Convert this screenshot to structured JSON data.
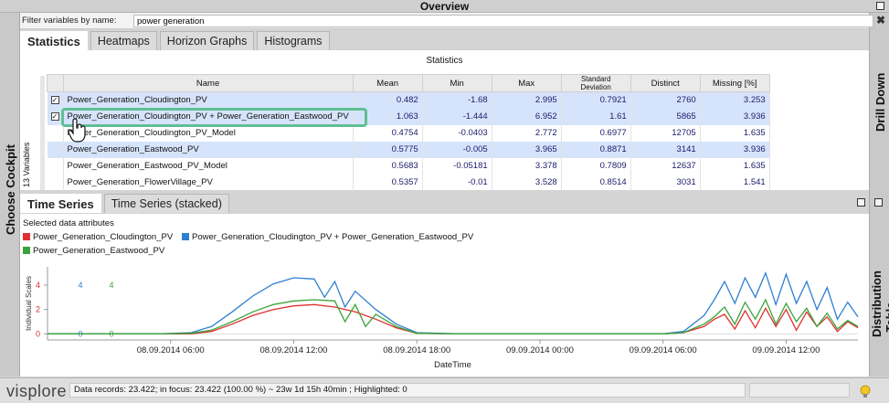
{
  "window": {
    "title": "Overview"
  },
  "side_panels": {
    "left": "Choose Cockpit",
    "right_top": "Drill Down",
    "right_bottom": "Distribution Table"
  },
  "filter": {
    "label": "Filter variables by name:",
    "value": "power generation",
    "clear_icon": "close-icon"
  },
  "top_tabs": [
    {
      "label": "Statistics",
      "active": true
    },
    {
      "label": "Heatmaps",
      "active": false
    },
    {
      "label": "Horizon Graphs",
      "active": false
    },
    {
      "label": "Histograms",
      "active": false
    }
  ],
  "statistics": {
    "heading": "Statistics",
    "variable_count": "13 Variables",
    "columns": [
      "Name",
      "Mean",
      "Min",
      "Max",
      "Standard Deviation",
      "Distinct",
      "Missing [%]"
    ],
    "rows": [
      {
        "checked": true,
        "selected": true,
        "name": "Power_Generation_Cloudington_PV",
        "mean": "0.482",
        "min": "-1.68",
        "max": "2.995",
        "std": "0.7921",
        "distinct": "2760",
        "missing": "3.253"
      },
      {
        "checked": true,
        "selected": true,
        "name": "Power_Generation_Cloudington_PV + Power_Generation_Eastwood_PV",
        "mean": "1.063",
        "min": "-1.444",
        "max": "6.952",
        "std": "1.61",
        "distinct": "5865",
        "missing": "3.936"
      },
      {
        "checked": false,
        "selected": false,
        "name": "Power_Generation_Cloudington_PV_Model",
        "mean": "0.4754",
        "min": "-0.0403",
        "max": "2.772",
        "std": "0.6977",
        "distinct": "12705",
        "missing": "1.635"
      },
      {
        "checked": false,
        "selected": true,
        "name": "Power_Generation_Eastwood_PV",
        "mean": "0.5775",
        "min": "-0.005",
        "max": "3.965",
        "std": "0.8871",
        "distinct": "3141",
        "missing": "3.936"
      },
      {
        "checked": false,
        "selected": false,
        "name": "Power_Generation_Eastwood_PV_Model",
        "mean": "0.5683",
        "min": "-0.05181",
        "max": "3.378",
        "std": "0.7809",
        "distinct": "12637",
        "missing": "1.635"
      },
      {
        "checked": false,
        "selected": false,
        "name": "Power_Generation_FlowerVillage_PV",
        "mean": "0.5357",
        "min": "-0.01",
        "max": "3.528",
        "std": "0.8514",
        "distinct": "3031",
        "missing": "1.541"
      }
    ]
  },
  "bottom_tabs": [
    {
      "label": "Time Series",
      "active": true
    },
    {
      "label": "Time Series (stacked)",
      "active": false
    }
  ],
  "time_series": {
    "attributes_title": "Selected data attributes",
    "legend": [
      {
        "name": "Power_Generation_Cloudington_PV",
        "color": "#e03030"
      },
      {
        "name": "Power_Generation_Cloudington_PV + Power_Generation_Eastwood_PV",
        "color": "#2f7fd0"
      },
      {
        "name": "Power_Generation_Eastwood_PV",
        "color": "#3aa33a"
      }
    ]
  },
  "chart_data": {
    "type": "line",
    "ylabel": "Individual Scales",
    "xlabel": "DateTime",
    "y_ticks": [
      "0",
      "2",
      "4"
    ],
    "series_axis_labels": [
      {
        "color": "#2f7fd0",
        "top": "4",
        "bottom": "0"
      },
      {
        "color": "#3aa33a",
        "top": "4",
        "bottom": "0"
      }
    ],
    "x_ticks": [
      "08.09.2014 06:00",
      "08.09.2014 12:00",
      "08.09.2014 18:00",
      "09.09.2014 00:00",
      "09.09.2014 06:00",
      "09.09.2014 12:00"
    ],
    "x_range": [
      "08.09.2014 00:00",
      "09.09.2014 15:30"
    ],
    "ylim": [
      -0.5,
      5.5
    ],
    "series": [
      {
        "name": "Power_Generation_Cloudington_PV",
        "color": "#e03030",
        "x": [
          "08.09.2014 00:00",
          "08.09.2014 05:30",
          "08.09.2014 07:00",
          "08.09.2014 08:00",
          "08.09.2014 09:00",
          "08.09.2014 10:00",
          "08.09.2014 11:00",
          "08.09.2014 12:00",
          "08.09.2014 13:00",
          "08.09.2014 14:00",
          "08.09.2014 15:00",
          "08.09.2014 16:00",
          "08.09.2014 17:00",
          "08.09.2014 18:00",
          "08.09.2014 20:00",
          "09.09.2014 06:00",
          "09.09.2014 07:00",
          "09.09.2014 08:00",
          "09.09.2014 08:30",
          "09.09.2014 09:00",
          "09.09.2014 09:30",
          "09.09.2014 10:00",
          "09.09.2014 10:30",
          "09.09.2014 11:00",
          "09.09.2014 11:30",
          "09.09.2014 12:00",
          "09.09.2014 12:30",
          "09.09.2014 13:00",
          "09.09.2014 13:30",
          "09.09.2014 14:00",
          "09.09.2014 14:30",
          "09.09.2014 15:00",
          "09.09.2014 15:30"
        ],
        "y": [
          0,
          0,
          0,
          0.2,
          0.8,
          1.5,
          2.0,
          2.3,
          2.4,
          2.2,
          1.8,
          1.2,
          0.5,
          0.05,
          0,
          0,
          0.1,
          0.6,
          1.2,
          1.6,
          0.4,
          1.9,
          0.5,
          2.1,
          0.6,
          2.0,
          0.3,
          1.8,
          0.6,
          1.4,
          0.2,
          1.0,
          0.5
        ]
      },
      {
        "name": "Power_Generation_Cloudington_PV + Power_Generation_Eastwood_PV",
        "color": "#2f7fd0",
        "x": [
          "08.09.2014 00:00",
          "08.09.2014 05:30",
          "08.09.2014 07:00",
          "08.09.2014 08:00",
          "08.09.2014 09:00",
          "08.09.2014 10:00",
          "08.09.2014 11:00",
          "08.09.2014 12:00",
          "08.09.2014 13:00",
          "08.09.2014 13:30",
          "08.09.2014 14:00",
          "08.09.2014 14:30",
          "08.09.2014 15:00",
          "08.09.2014 16:00",
          "08.09.2014 17:00",
          "08.09.2014 18:00",
          "08.09.2014 20:00",
          "09.09.2014 06:00",
          "09.09.2014 07:00",
          "09.09.2014 08:00",
          "09.09.2014 08:30",
          "09.09.2014 09:00",
          "09.09.2014 09:30",
          "09.09.2014 10:00",
          "09.09.2014 10:30",
          "09.09.2014 11:00",
          "09.09.2014 11:30",
          "09.09.2014 12:00",
          "09.09.2014 12:30",
          "09.09.2014 13:00",
          "09.09.2014 13:30",
          "09.09.2014 14:00",
          "09.09.2014 14:30",
          "09.09.2014 15:00",
          "09.09.2014 15:30"
        ],
        "y": [
          0,
          0,
          0.1,
          0.6,
          1.8,
          3.1,
          4.1,
          4.6,
          4.5,
          3.0,
          4.3,
          2.2,
          3.5,
          2.0,
          0.8,
          0.1,
          0,
          0,
          0.2,
          1.5,
          2.8,
          4.3,
          2.5,
          4.6,
          3.0,
          5.0,
          2.4,
          4.9,
          2.5,
          4.3,
          2.0,
          3.8,
          1.2,
          2.6,
          1.4
        ]
      },
      {
        "name": "Power_Generation_Eastwood_PV",
        "color": "#3aa33a",
        "x": [
          "08.09.2014 00:00",
          "08.09.2014 05:30",
          "08.09.2014 07:00",
          "08.09.2014 08:00",
          "08.09.2014 09:00",
          "08.09.2014 10:00",
          "08.09.2014 11:00",
          "08.09.2014 12:00",
          "08.09.2014 13:00",
          "08.09.2014 14:00",
          "08.09.2014 14:30",
          "08.09.2014 15:00",
          "08.09.2014 15:30",
          "08.09.2014 16:00",
          "08.09.2014 17:00",
          "08.09.2014 18:00",
          "08.09.2014 20:00",
          "09.09.2014 06:00",
          "09.09.2014 07:00",
          "09.09.2014 08:00",
          "09.09.2014 08:30",
          "09.09.2014 09:00",
          "09.09.2014 09:30",
          "09.09.2014 10:00",
          "09.09.2014 10:30",
          "09.09.2014 11:00",
          "09.09.2014 11:30",
          "09.09.2014 12:00",
          "09.09.2014 12:30",
          "09.09.2014 13:00",
          "09.09.2014 13:30",
          "09.09.2014 14:00",
          "09.09.2014 14:30",
          "09.09.2014 15:00",
          "09.09.2014 15:30"
        ],
        "y": [
          0,
          0,
          0.05,
          0.3,
          1.0,
          1.8,
          2.4,
          2.7,
          2.8,
          2.7,
          1.0,
          2.4,
          0.6,
          1.6,
          0.6,
          0.05,
          0,
          0,
          0.1,
          0.8,
          1.4,
          2.2,
          0.8,
          2.6,
          1.2,
          2.8,
          0.8,
          2.5,
          1.0,
          2.1,
          0.6,
          1.7,
          0.4,
          1.1,
          0.6
        ]
      }
    ]
  },
  "status": {
    "logo": "visplore",
    "text": "Data records: 23.422; in focus: 23.422 (100.00 %) ~ 23w 1d 15h 40min ; Highlighted: 0"
  }
}
